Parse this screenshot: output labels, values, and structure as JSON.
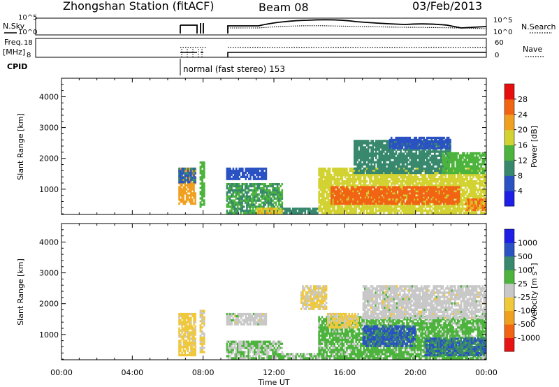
{
  "header": {
    "station": "Zhongshan Station (fitACF)",
    "beam": "Beam 08",
    "date": "03/Feb/2013",
    "cpid_label": "CPID",
    "cpid_text": "normal (fast stereo) 153"
  },
  "small_panels": {
    "nsky_label": "N.Sky",
    "nsearch_label": "N.Search",
    "nsky_ticks": [
      "10^5",
      "10^0"
    ],
    "nsearch_ticks": [
      "10^5",
      "10^0"
    ],
    "freq_label": "Freq.",
    "freq_unit": "[MHz]",
    "freq_ticks": [
      "18",
      "8"
    ],
    "nave_label": "Nave",
    "nave_ticks": [
      "60",
      "0"
    ]
  },
  "x_axis": {
    "label": "Time UT",
    "ticks": [
      "00:00",
      "04:00",
      "08:00",
      "12:00",
      "16:00",
      "20:00",
      "00:00"
    ],
    "range_hours": [
      0,
      24
    ]
  },
  "colors": {
    "power": [
      "#1e1ee6",
      "#2b52c3",
      "#38886e",
      "#4cb43c",
      "#d2d232",
      "#f0a020",
      "#f06414",
      "#e60f0f"
    ],
    "velocity": [
      "#e61414",
      "#f06414",
      "#f0a020",
      "#f0c83c",
      "#c8c8c8",
      "#4cb43c",
      "#38886e",
      "#2b52c3",
      "#1e1ee6"
    ]
  },
  "chart_data": [
    {
      "type": "heatmap",
      "title": "",
      "xlabel": "",
      "ylabel": "Slant Range [km]",
      "xlim": [
        0,
        24
      ],
      "ylim": [
        180,
        4600
      ],
      "y_ticks": [
        "1000",
        "2000",
        "3000",
        "4000"
      ],
      "colorbar": {
        "label": "Power [dB]",
        "ticks": [
          "4",
          "8",
          "12",
          "16",
          "20",
          "24",
          "28"
        ],
        "range": [
          0,
          32
        ]
      },
      "regions": [
        {
          "t0": 6.6,
          "t1": 7.6,
          "r0": 500,
          "r1": 1700,
          "v": 22
        },
        {
          "t0": 6.6,
          "t1": 7.6,
          "r0": 1200,
          "r1": 1700,
          "v": 8
        },
        {
          "t0": 7.8,
          "t1": 8.1,
          "r0": 400,
          "r1": 1900,
          "v": 14
        },
        {
          "t0": 9.3,
          "t1": 11.6,
          "r0": 1300,
          "r1": 1700,
          "v": 6
        },
        {
          "t0": 9.3,
          "t1": 12.5,
          "r0": 200,
          "r1": 1200,
          "v": 12
        },
        {
          "t0": 11.0,
          "t1": 12.5,
          "r0": 200,
          "r1": 400,
          "v": 20
        },
        {
          "t0": 12.5,
          "t1": 14.5,
          "r0": 200,
          "r1": 400,
          "v": 10
        },
        {
          "t0": 14.5,
          "t1": 24.0,
          "r0": 200,
          "r1": 1700,
          "v": 18
        },
        {
          "t0": 15.2,
          "t1": 22.5,
          "r0": 500,
          "r1": 1100,
          "v": 26
        },
        {
          "t0": 16.5,
          "t1": 22.0,
          "r0": 1500,
          "r1": 2600,
          "v": 10
        },
        {
          "t0": 21.5,
          "t1": 24.0,
          "r0": 1500,
          "r1": 2200,
          "v": 14
        },
        {
          "t0": 22.8,
          "t1": 24.0,
          "r0": 300,
          "r1": 700,
          "v": 24
        },
        {
          "t0": 18.5,
          "t1": 22.0,
          "r0": 2300,
          "r1": 2700,
          "v": 6
        }
      ]
    },
    {
      "type": "heatmap",
      "title": "",
      "xlabel": "Time UT",
      "ylabel": "Slant Range [km]",
      "xlim": [
        0,
        24
      ],
      "ylim": [
        180,
        4600
      ],
      "y_ticks": [
        "1000",
        "2000",
        "3000",
        "4000"
      ],
      "colorbar": {
        "label": "Velocity [m s^-1]",
        "ticks": [
          "1000",
          "500",
          "100",
          "25",
          "-25",
          "-100",
          "-500",
          "-1000"
        ],
        "range": [
          -1500,
          1500
        ]
      },
      "regions": [
        {
          "t0": 6.6,
          "t1": 7.6,
          "r0": 300,
          "r1": 1700,
          "v": -300
        },
        {
          "t0": 7.8,
          "t1": 8.1,
          "r0": 400,
          "r1": 1800,
          "v": -200
        },
        {
          "t0": 9.3,
          "t1": 11.6,
          "r0": 1300,
          "r1": 1700,
          "v": 0
        },
        {
          "t0": 9.3,
          "t1": 12.5,
          "r0": 200,
          "r1": 800,
          "v": 200
        },
        {
          "t0": 12.5,
          "t1": 14.5,
          "r0": 200,
          "r1": 400,
          "v": 200
        },
        {
          "t0": 14.5,
          "t1": 24.0,
          "r0": 200,
          "r1": 1600,
          "v": 300
        },
        {
          "t0": 17.0,
          "t1": 20.0,
          "r0": 600,
          "r1": 1300,
          "v": 900
        },
        {
          "t0": 20.5,
          "t1": 24.0,
          "r0": 300,
          "r1": 900,
          "v": 800
        },
        {
          "t0": 17.0,
          "t1": 24.0,
          "r0": 1500,
          "r1": 2600,
          "v": 0
        },
        {
          "t0": 13.5,
          "t1": 15.0,
          "r0": 1800,
          "r1": 2600,
          "v": -200
        },
        {
          "t0": 15.0,
          "t1": 16.8,
          "r0": 1200,
          "r1": 1700,
          "v": -250
        }
      ]
    }
  ]
}
